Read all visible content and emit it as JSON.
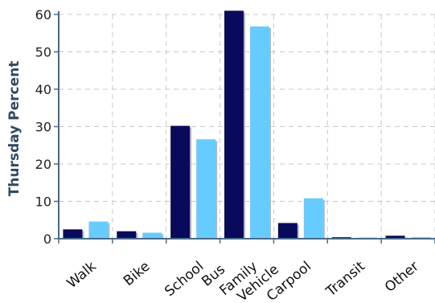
{
  "chart_data": {
    "type": "bar",
    "title": "",
    "xlabel": "",
    "ylabel": "Thursday Percent",
    "ylim": [
      0,
      60
    ],
    "yticks": [
      0,
      10,
      20,
      30,
      40,
      50,
      60
    ],
    "grid": true,
    "legend": "none",
    "categories": [
      "Walk",
      "Bike",
      "School\nBus",
      "Family\nVehicle",
      "Carpool",
      "Transit",
      "Other"
    ],
    "series": [
      {
        "values": [
          2.5,
          2.0,
          30.2,
          61.0,
          4.2,
          0.4,
          0.8
        ],
        "color": "#0a0a5c"
      },
      {
        "values": [
          4.6,
          1.6,
          26.6,
          56.8,
          10.8,
          0.3,
          0.4
        ],
        "color": "#66ccff"
      }
    ],
    "colors": {
      "axis": "#4a6a88",
      "grid": "#c8c8c8",
      "ylabel": "#2f4a63"
    }
  }
}
